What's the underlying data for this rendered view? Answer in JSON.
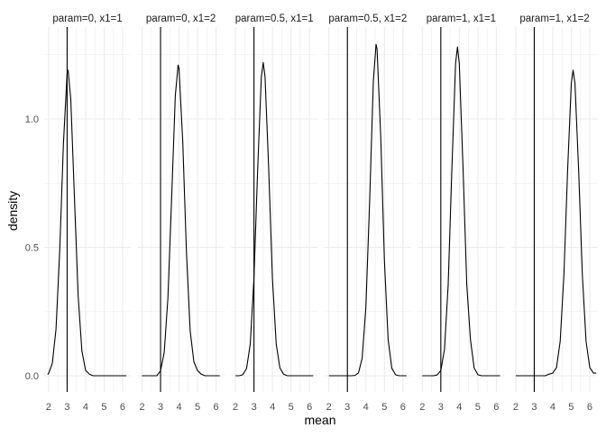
{
  "chart_data": {
    "type": "line",
    "subtype": "faceted density",
    "xlabel": "mean",
    "ylabel": "density",
    "xlim": [
      1.76,
      6.44
    ],
    "ylim": [
      -0.063,
      1.36
    ],
    "x_ticks": [
      "2",
      "3",
      "4",
      "5",
      "6"
    ],
    "y_ticks": [
      "0.0",
      "0.5",
      "1.0"
    ],
    "grid": true,
    "reference_line_x": 3,
    "line_color": "#000000",
    "grid_color": "#ebebeb",
    "panels": [
      {
        "label": "param=0, x1=1",
        "x": [
          1.95,
          2.0,
          2.2,
          2.4,
          2.6,
          2.8,
          3.0,
          3.05,
          3.2,
          3.4,
          3.6,
          3.8,
          4.0,
          4.2,
          4.4,
          6.2
        ],
        "y": [
          0.005,
          0.009,
          0.048,
          0.181,
          0.483,
          0.901,
          1.177,
          1.19,
          1.077,
          0.689,
          0.309,
          0.097,
          0.021,
          0.006,
          0,
          0
        ]
      },
      {
        "label": "param=0, x1=2",
        "x": [
          2.0,
          2.8,
          3.0,
          3.2,
          3.4,
          3.6,
          3.8,
          3.95,
          4.0,
          4.2,
          4.4,
          4.6,
          4.8,
          5.0,
          5.2,
          5.4,
          6.2
        ],
        "y": [
          0,
          0,
          0.019,
          0.091,
          0.302,
          0.69,
          1.091,
          1.21,
          1.197,
          0.908,
          0.477,
          0.174,
          0.054,
          0.02,
          0.006,
          0,
          0
        ]
      },
      {
        "label": "param=0.5, x1=1",
        "x": [
          2.0,
          2.2,
          2.4,
          2.6,
          2.8,
          3.0,
          3.2,
          3.4,
          3.5,
          3.6,
          3.8,
          4.0,
          4.2,
          4.4,
          4.6,
          4.8,
          6.2
        ],
        "y": [
          0,
          0,
          0.004,
          0.028,
          0.123,
          0.379,
          0.801,
          1.164,
          1.22,
          1.164,
          0.801,
          0.379,
          0.123,
          0.03,
          0.006,
          0,
          0
        ]
      },
      {
        "label": "param=0.5, x1=2",
        "x": [
          2.0,
          3.2,
          3.4,
          3.6,
          3.8,
          4.0,
          4.2,
          4.4,
          4.55,
          4.6,
          4.8,
          5.0,
          5.2,
          5.4,
          5.6,
          5.8,
          6.2
        ],
        "y": [
          0,
          0,
          0.001,
          0.011,
          0.068,
          0.265,
          0.679,
          1.147,
          1.29,
          1.273,
          0.93,
          0.447,
          0.141,
          0.029,
          0.004,
          0,
          0
        ]
      },
      {
        "label": "param=1, x1=1",
        "x": [
          2.0,
          2.6,
          2.8,
          3.0,
          3.2,
          3.4,
          3.6,
          3.8,
          3.9,
          4.0,
          4.2,
          4.4,
          4.6,
          4.8,
          5.0,
          5.2,
          6.2
        ],
        "y": [
          0,
          0,
          0.003,
          0.02,
          0.103,
          0.355,
          0.806,
          1.216,
          1.28,
          1.216,
          0.806,
          0.355,
          0.14,
          0.03,
          0.004,
          0,
          0
        ]
      },
      {
        "label": "param=1, x1=2",
        "x": [
          2.0,
          3.6,
          3.8,
          4.0,
          4.2,
          4.4,
          4.6,
          4.8,
          5.0,
          5.1,
          5.2,
          5.4,
          5.6,
          5.8,
          6.0,
          6.2,
          6.35
        ],
        "y": [
          0,
          0,
          0.006,
          0.01,
          0.032,
          0.134,
          0.391,
          0.797,
          1.138,
          1.19,
          1.138,
          0.797,
          0.391,
          0.134,
          0.032,
          0.01,
          0.01
        ]
      }
    ]
  }
}
